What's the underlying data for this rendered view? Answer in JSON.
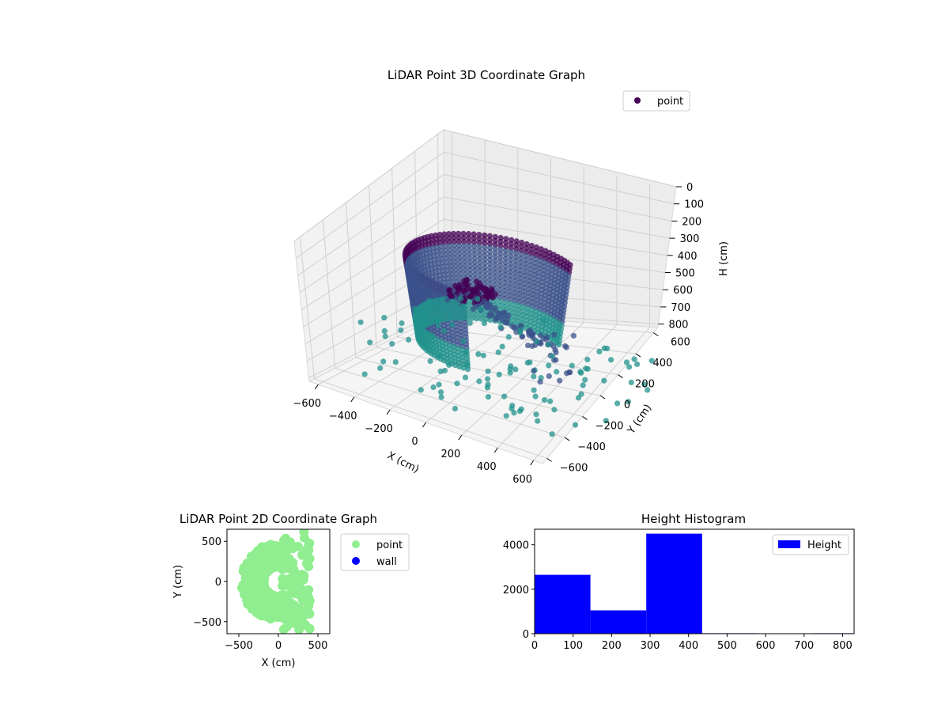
{
  "chart_data": [
    {
      "type": "scatter3d",
      "title": "LiDAR Point 3D Coordinate Graph",
      "xlabel": "X (cm)",
      "ylabel": "Y (cm)",
      "zlabel": "H (cm)",
      "legend": {
        "entries": [
          "point"
        ],
        "placement": "top-right"
      },
      "grid": true,
      "xticks": [
        "−600",
        "−400",
        "−200",
        "0",
        "200",
        "400",
        "600"
      ],
      "yticks": [
        "600",
        "400",
        "200",
        "0",
        "−200",
        "−400",
        "−600"
      ],
      "zticks": [
        "0",
        "100",
        "200",
        "300",
        "400",
        "500",
        "600",
        "700",
        "800"
      ],
      "xlim": [
        -650,
        650
      ],
      "ylim": [
        -650,
        650
      ],
      "zlim": [
        0,
        820
      ],
      "colormap": "viridis",
      "colors": [
        "#440154",
        "#3b528b",
        "#21918c",
        "#5ec962",
        "#a0dab9"
      ]
    },
    {
      "type": "scatter",
      "title": "LiDAR Point 2D Coordinate Graph",
      "xlabel": "X (cm)",
      "ylabel": "Y (cm)",
      "xticks": [
        "−500",
        "0",
        "500"
      ],
      "yticks": [
        "500",
        "0",
        "−500"
      ],
      "xlim": [
        -650,
        650
      ],
      "ylim": [
        -650,
        650
      ],
      "legend": {
        "placement": "outside-right"
      },
      "series": [
        {
          "name": "point",
          "color": "#90ee90"
        },
        {
          "name": "wall",
          "color": "#0000ff"
        }
      ]
    },
    {
      "type": "bar",
      "title": "Height Histogram",
      "legend": {
        "entries": [
          "Height"
        ],
        "placement": "top-right"
      },
      "bar_color": "#0000ff",
      "xlim": [
        0,
        830
      ],
      "ylim": [
        0,
        4700
      ],
      "xticks": [
        "0",
        "100",
        "200",
        "300",
        "400",
        "500",
        "600",
        "700",
        "800"
      ],
      "yticks": [
        "0",
        "2000",
        "4000"
      ],
      "bins": [
        {
          "start": 0,
          "end": 145,
          "count": 2650
        },
        {
          "start": 145,
          "end": 290,
          "count": 1050
        },
        {
          "start": 290,
          "end": 435,
          "count": 4500
        },
        {
          "start": 435,
          "end": 580,
          "count": 20
        },
        {
          "start": 580,
          "end": 725,
          "count": 15
        },
        {
          "start": 725,
          "end": 830,
          "count": 20
        }
      ]
    }
  ]
}
